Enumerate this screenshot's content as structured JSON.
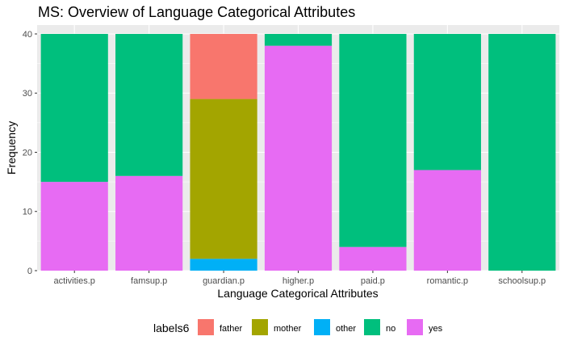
{
  "chart_data": {
    "type": "bar",
    "stacked": true,
    "title": "MS: Overview of Language Categorical Attributes",
    "xlabel": "Language Categorical Attributes",
    "ylabel": "Frequency",
    "ylim": [
      0,
      41.5
    ],
    "yticks": [
      0,
      10,
      20,
      30,
      40
    ],
    "grid": true,
    "legend_position": "bottom",
    "legend_title": "labels6",
    "categories": [
      "activities.p",
      "famsup.p",
      "guardian.p",
      "higher.p",
      "paid.p",
      "romantic.p",
      "schoolsup.p"
    ],
    "stack_order": [
      "father",
      "mother",
      "other",
      "no",
      "yes"
    ],
    "series": [
      {
        "name": "father",
        "color": "#F8766D",
        "values": [
          0,
          0,
          11,
          0,
          0,
          0,
          0
        ]
      },
      {
        "name": "mother",
        "color": "#A3A500",
        "values": [
          0,
          0,
          27,
          0,
          0,
          0,
          0
        ]
      },
      {
        "name": "other",
        "color": "#00B0F6",
        "values": [
          0,
          0,
          2,
          0,
          0,
          0,
          0
        ]
      },
      {
        "name": "no",
        "color": "#00BF7D",
        "values": [
          25,
          24,
          0,
          2,
          36,
          23,
          40
        ]
      },
      {
        "name": "yes",
        "color": "#E76BF3",
        "values": [
          15,
          16,
          0,
          38,
          4,
          17,
          0
        ]
      }
    ]
  }
}
